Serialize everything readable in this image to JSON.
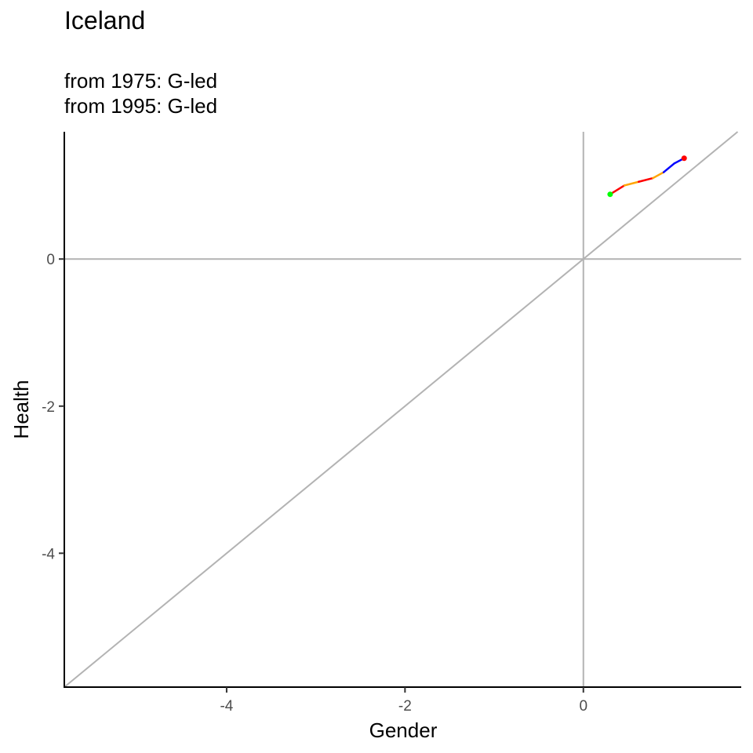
{
  "chart_data": {
    "type": "line",
    "title": "Iceland",
    "subtitle_lines": [
      "from 1975:  G-led",
      "from 1995:  G-led"
    ],
    "xlabel": "Gender",
    "ylabel": "Health",
    "xlim": [
      -5.82,
      1.77
    ],
    "ylim": [
      -5.82,
      1.73
    ],
    "x_ticks": [
      -4,
      -2,
      0
    ],
    "y_ticks": [
      0,
      -2,
      -4
    ],
    "reference_lines": {
      "vertical_x": 0,
      "horizontal_y": 0,
      "diagonal": "y = x",
      "color": "#b3b3b3"
    },
    "series": [
      {
        "x": [
          0.3,
          0.46,
          0.62,
          0.78,
          0.9,
          1.02,
          1.13
        ],
        "y": [
          0.88,
          1.0,
          1.05,
          1.1,
          1.18,
          1.3,
          1.37
        ],
        "segment_colors": [
          "#ff0000",
          "#ffa500",
          "#ff0000",
          "#ffa500",
          "#0000ff",
          "#0000ff"
        ],
        "start_point_color": "#00ff00",
        "end_point_color": "#ff0000"
      }
    ],
    "grid": false,
    "legend": "none"
  }
}
